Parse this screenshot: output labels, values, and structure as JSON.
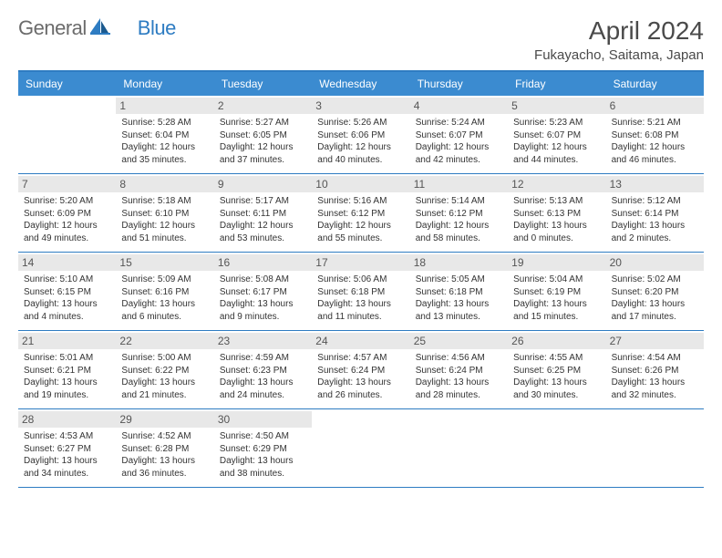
{
  "logo": {
    "text1": "General",
    "text2": "Blue"
  },
  "title": "April 2024",
  "location": "Fukayacho, Saitama, Japan",
  "dayNames": [
    "Sunday",
    "Monday",
    "Tuesday",
    "Wednesday",
    "Thursday",
    "Friday",
    "Saturday"
  ],
  "colors": {
    "headerBlue": "#3b8bd0",
    "borderBlue": "#2e7cc2",
    "dayNumBg": "#e8e8e8",
    "textGray": "#4a4a4a"
  },
  "weeks": [
    [
      {
        "num": "",
        "sunrise": "",
        "sunset": "",
        "daylight": ""
      },
      {
        "num": "1",
        "sunrise": "Sunrise: 5:28 AM",
        "sunset": "Sunset: 6:04 PM",
        "daylight": "Daylight: 12 hours and 35 minutes."
      },
      {
        "num": "2",
        "sunrise": "Sunrise: 5:27 AM",
        "sunset": "Sunset: 6:05 PM",
        "daylight": "Daylight: 12 hours and 37 minutes."
      },
      {
        "num": "3",
        "sunrise": "Sunrise: 5:26 AM",
        "sunset": "Sunset: 6:06 PM",
        "daylight": "Daylight: 12 hours and 40 minutes."
      },
      {
        "num": "4",
        "sunrise": "Sunrise: 5:24 AM",
        "sunset": "Sunset: 6:07 PM",
        "daylight": "Daylight: 12 hours and 42 minutes."
      },
      {
        "num": "5",
        "sunrise": "Sunrise: 5:23 AM",
        "sunset": "Sunset: 6:07 PM",
        "daylight": "Daylight: 12 hours and 44 minutes."
      },
      {
        "num": "6",
        "sunrise": "Sunrise: 5:21 AM",
        "sunset": "Sunset: 6:08 PM",
        "daylight": "Daylight: 12 hours and 46 minutes."
      }
    ],
    [
      {
        "num": "7",
        "sunrise": "Sunrise: 5:20 AM",
        "sunset": "Sunset: 6:09 PM",
        "daylight": "Daylight: 12 hours and 49 minutes."
      },
      {
        "num": "8",
        "sunrise": "Sunrise: 5:18 AM",
        "sunset": "Sunset: 6:10 PM",
        "daylight": "Daylight: 12 hours and 51 minutes."
      },
      {
        "num": "9",
        "sunrise": "Sunrise: 5:17 AM",
        "sunset": "Sunset: 6:11 PM",
        "daylight": "Daylight: 12 hours and 53 minutes."
      },
      {
        "num": "10",
        "sunrise": "Sunrise: 5:16 AM",
        "sunset": "Sunset: 6:12 PM",
        "daylight": "Daylight: 12 hours and 55 minutes."
      },
      {
        "num": "11",
        "sunrise": "Sunrise: 5:14 AM",
        "sunset": "Sunset: 6:12 PM",
        "daylight": "Daylight: 12 hours and 58 minutes."
      },
      {
        "num": "12",
        "sunrise": "Sunrise: 5:13 AM",
        "sunset": "Sunset: 6:13 PM",
        "daylight": "Daylight: 13 hours and 0 minutes."
      },
      {
        "num": "13",
        "sunrise": "Sunrise: 5:12 AM",
        "sunset": "Sunset: 6:14 PM",
        "daylight": "Daylight: 13 hours and 2 minutes."
      }
    ],
    [
      {
        "num": "14",
        "sunrise": "Sunrise: 5:10 AM",
        "sunset": "Sunset: 6:15 PM",
        "daylight": "Daylight: 13 hours and 4 minutes."
      },
      {
        "num": "15",
        "sunrise": "Sunrise: 5:09 AM",
        "sunset": "Sunset: 6:16 PM",
        "daylight": "Daylight: 13 hours and 6 minutes."
      },
      {
        "num": "16",
        "sunrise": "Sunrise: 5:08 AM",
        "sunset": "Sunset: 6:17 PM",
        "daylight": "Daylight: 13 hours and 9 minutes."
      },
      {
        "num": "17",
        "sunrise": "Sunrise: 5:06 AM",
        "sunset": "Sunset: 6:18 PM",
        "daylight": "Daylight: 13 hours and 11 minutes."
      },
      {
        "num": "18",
        "sunrise": "Sunrise: 5:05 AM",
        "sunset": "Sunset: 6:18 PM",
        "daylight": "Daylight: 13 hours and 13 minutes."
      },
      {
        "num": "19",
        "sunrise": "Sunrise: 5:04 AM",
        "sunset": "Sunset: 6:19 PM",
        "daylight": "Daylight: 13 hours and 15 minutes."
      },
      {
        "num": "20",
        "sunrise": "Sunrise: 5:02 AM",
        "sunset": "Sunset: 6:20 PM",
        "daylight": "Daylight: 13 hours and 17 minutes."
      }
    ],
    [
      {
        "num": "21",
        "sunrise": "Sunrise: 5:01 AM",
        "sunset": "Sunset: 6:21 PM",
        "daylight": "Daylight: 13 hours and 19 minutes."
      },
      {
        "num": "22",
        "sunrise": "Sunrise: 5:00 AM",
        "sunset": "Sunset: 6:22 PM",
        "daylight": "Daylight: 13 hours and 21 minutes."
      },
      {
        "num": "23",
        "sunrise": "Sunrise: 4:59 AM",
        "sunset": "Sunset: 6:23 PM",
        "daylight": "Daylight: 13 hours and 24 minutes."
      },
      {
        "num": "24",
        "sunrise": "Sunrise: 4:57 AM",
        "sunset": "Sunset: 6:24 PM",
        "daylight": "Daylight: 13 hours and 26 minutes."
      },
      {
        "num": "25",
        "sunrise": "Sunrise: 4:56 AM",
        "sunset": "Sunset: 6:24 PM",
        "daylight": "Daylight: 13 hours and 28 minutes."
      },
      {
        "num": "26",
        "sunrise": "Sunrise: 4:55 AM",
        "sunset": "Sunset: 6:25 PM",
        "daylight": "Daylight: 13 hours and 30 minutes."
      },
      {
        "num": "27",
        "sunrise": "Sunrise: 4:54 AM",
        "sunset": "Sunset: 6:26 PM",
        "daylight": "Daylight: 13 hours and 32 minutes."
      }
    ],
    [
      {
        "num": "28",
        "sunrise": "Sunrise: 4:53 AM",
        "sunset": "Sunset: 6:27 PM",
        "daylight": "Daylight: 13 hours and 34 minutes."
      },
      {
        "num": "29",
        "sunrise": "Sunrise: 4:52 AM",
        "sunset": "Sunset: 6:28 PM",
        "daylight": "Daylight: 13 hours and 36 minutes."
      },
      {
        "num": "30",
        "sunrise": "Sunrise: 4:50 AM",
        "sunset": "Sunset: 6:29 PM",
        "daylight": "Daylight: 13 hours and 38 minutes."
      },
      {
        "num": "",
        "sunrise": "",
        "sunset": "",
        "daylight": ""
      },
      {
        "num": "",
        "sunrise": "",
        "sunset": "",
        "daylight": ""
      },
      {
        "num": "",
        "sunrise": "",
        "sunset": "",
        "daylight": ""
      },
      {
        "num": "",
        "sunrise": "",
        "sunset": "",
        "daylight": ""
      }
    ]
  ]
}
